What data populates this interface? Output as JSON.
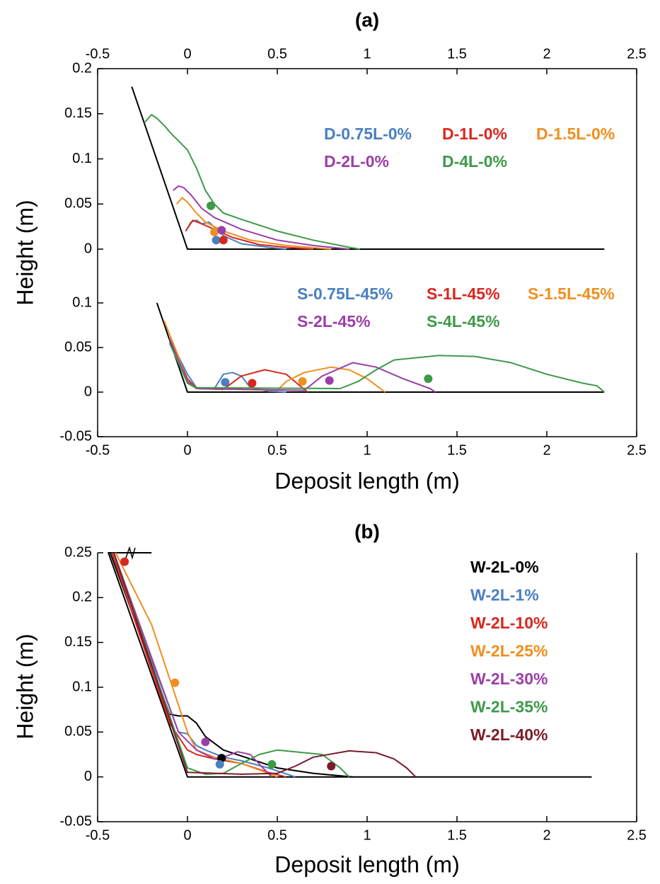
{
  "chart_data": [
    {
      "type": "line",
      "title": "(a)",
      "y_label": "Height (m)",
      "x_axis_side": "top",
      "xlim": [
        -0.5,
        2.5
      ],
      "xticks": [
        -0.5,
        0,
        0.5,
        1,
        1.5,
        2,
        2.5
      ],
      "ylim": [
        0,
        0.2
      ],
      "yticks": [
        0,
        0.05,
        0.1,
        0.15,
        0.2
      ],
      "ground": {
        "color": "#000000",
        "x": [
          -0.31,
          0,
          2.32
        ],
        "values": [
          0.18,
          0,
          0
        ]
      },
      "series": [
        {
          "name": "D-0.75L-0%",
          "color": "#4a7fc1",
          "x": [
            -0.01,
            0.02,
            0.05,
            0.08,
            0.12,
            0.2,
            0.3,
            0.45,
            0.55
          ],
          "values": [
            0.02,
            0.03,
            0.032,
            0.028,
            0.03,
            0.015,
            0.006,
            0.002,
            0
          ],
          "marker_x": 0.16,
          "marker_y": 0.01
        },
        {
          "name": "D-1L-0%",
          "color": "#d9271d",
          "x": [
            -0.01,
            0.03,
            0.08,
            0.15,
            0.25,
            0.4,
            0.55,
            0.7
          ],
          "values": [
            0.02,
            0.032,
            0.028,
            0.022,
            0.013,
            0.005,
            0.002,
            0
          ],
          "marker_x": 0.2,
          "marker_y": 0.01
        },
        {
          "name": "D-1.5L-0%",
          "color": "#ef8f1f",
          "x": [
            -0.06,
            -0.03,
            0,
            0.05,
            0.1,
            0.2,
            0.35,
            0.55,
            0.8
          ],
          "values": [
            0.05,
            0.057,
            0.052,
            0.04,
            0.03,
            0.02,
            0.01,
            0.004,
            0
          ],
          "marker_x": 0.15,
          "marker_y": 0.019
        },
        {
          "name": "D-2L-0%",
          "color": "#9b3fa8",
          "x": [
            -0.08,
            -0.05,
            -0.02,
            0.02,
            0.08,
            0.15,
            0.3,
            0.5,
            0.7,
            0.9
          ],
          "values": [
            0.065,
            0.07,
            0.068,
            0.06,
            0.045,
            0.035,
            0.022,
            0.01,
            0.004,
            0
          ],
          "marker_x": 0.19,
          "marker_y": 0.021
        },
        {
          "name": "D-4L-0%",
          "color": "#3e9a48",
          "x": [
            -0.24,
            -0.2,
            -0.17,
            -0.12,
            -0.1,
            0,
            0.05,
            0.1,
            0.15,
            0.2,
            0.3,
            0.5,
            0.7,
            0.9,
            0.96
          ],
          "values": [
            0.14,
            0.149,
            0.145,
            0.135,
            0.13,
            0.11,
            0.09,
            0.065,
            0.05,
            0.04,
            0.033,
            0.02,
            0.01,
            0.002,
            0
          ],
          "marker_x": 0.13,
          "marker_y": 0.048
        }
      ]
    },
    {
      "type": "line",
      "x_label": "Deposit length (m)",
      "x_axis_side": "bottom",
      "xlim": [
        -0.5,
        2.5
      ],
      "xticks": [
        -0.5,
        0,
        0.5,
        1,
        1.5,
        2,
        2.5
      ],
      "ylim": [
        -0.05,
        0.1
      ],
      "yticks": [
        -0.05,
        0,
        0.05,
        0.1
      ],
      "ground": {
        "color": "#000000",
        "x": [
          -0.17,
          0,
          2.32
        ],
        "values": [
          0.1,
          0,
          0
        ]
      },
      "series": [
        {
          "name": "S-0.75L-45%",
          "color": "#4a7fc1",
          "x": [
            -0.1,
            -0.05,
            0,
            0.05,
            0.15,
            0.2,
            0.25,
            0.3,
            0.35,
            0.45,
            0.55
          ],
          "values": [
            0.06,
            0.04,
            0.02,
            0.005,
            0.004,
            0.02,
            0.022,
            0.018,
            0.005,
            0.001,
            0
          ],
          "marker_x": 0.21,
          "marker_y": 0.011
        },
        {
          "name": "S-1L-45%",
          "color": "#d9271d",
          "x": [
            -0.1,
            0,
            0.05,
            0.2,
            0.3,
            0.43,
            0.55,
            0.62,
            0.67
          ],
          "values": [
            0.06,
            0.015,
            0.004,
            0.003,
            0.018,
            0.025,
            0.02,
            0.008,
            0
          ],
          "marker_x": 0.36,
          "marker_y": 0.01
        },
        {
          "name": "S-1.5L-45%",
          "color": "#ef8f1f",
          "x": [
            -0.13,
            -0.05,
            0,
            0.05,
            0.5,
            0.55,
            0.65,
            0.8,
            0.9,
            1.0,
            1.1
          ],
          "values": [
            0.08,
            0.04,
            0.01,
            0.004,
            0.002,
            0.012,
            0.022,
            0.028,
            0.025,
            0.015,
            0
          ],
          "marker_x": 0.64,
          "marker_y": 0.012
        },
        {
          "name": "S-2L-45%",
          "color": "#9b3fa8",
          "x": [
            -0.1,
            0,
            0.05,
            0.65,
            0.75,
            0.92,
            1.05,
            1.2,
            1.35,
            1.38
          ],
          "values": [
            0.06,
            0.012,
            0.004,
            0.002,
            0.018,
            0.033,
            0.028,
            0.015,
            0.004,
            0
          ],
          "marker_x": 0.79,
          "marker_y": 0.013
        },
        {
          "name": "S-4L-45%",
          "color": "#3e9a48",
          "x": [
            -0.1,
            0,
            0.05,
            0.85,
            0.95,
            1.05,
            1.15,
            1.4,
            1.6,
            1.8,
            2.0,
            2.2,
            2.28,
            2.32
          ],
          "values": [
            0.055,
            0.01,
            0.005,
            0.004,
            0.012,
            0.025,
            0.036,
            0.041,
            0.04,
            0.033,
            0.02,
            0.01,
            0.007,
            0
          ],
          "marker_x": 1.34,
          "marker_y": 0.015
        }
      ]
    },
    {
      "type": "line",
      "title": "(b)",
      "y_label": "Height (m)",
      "x_label": "Deposit length (m)",
      "x_axis_side": "bottom",
      "xlim": [
        -0.5,
        2.5
      ],
      "xticks": [
        -0.5,
        0,
        0.5,
        1,
        1.5,
        2,
        2.5
      ],
      "ylim": [
        -0.05,
        0.25
      ],
      "yticks": [
        -0.05,
        0,
        0.05,
        0.1,
        0.15,
        0.2,
        0.25
      ],
      "ground": {
        "color": "#000000",
        "x": [
          -0.2,
          -0.44,
          0,
          2.25
        ],
        "values": [
          0.25,
          0.25,
          0,
          0
        ]
      },
      "series": [
        {
          "name": "W-2L-0%",
          "color": "#000000",
          "x": [
            -0.43,
            -0.1,
            -0.05,
            0,
            0.05,
            0.1,
            0.2,
            0.35,
            0.5,
            0.7,
            0.92
          ],
          "values": [
            0.25,
            0.07,
            0.068,
            0.068,
            0.06,
            0.045,
            0.03,
            0.02,
            0.01,
            0.004,
            0
          ],
          "marker_x": 0.19,
          "marker_y": 0.021
        },
        {
          "name": "W-2L-1%",
          "color": "#4a7fc1",
          "x": [
            -0.42,
            -0.05,
            0,
            0.05,
            0.1,
            0.2,
            0.3,
            0.45,
            0.6
          ],
          "values": [
            0.25,
            0.05,
            0.048,
            0.035,
            0.03,
            0.022,
            0.018,
            0.01,
            0
          ],
          "marker_x": 0.18,
          "marker_y": 0.014
        },
        {
          "name": "W-2L-10%",
          "color": "#d9271d",
          "x": [
            -0.42,
            -0.1,
            0,
            0.05,
            0.15,
            0.3,
            0.45,
            0.55
          ],
          "values": [
            0.25,
            0.06,
            0.03,
            0.025,
            0.02,
            0.015,
            0.005,
            0
          ],
          "marker_x": -0.35,
          "marker_y": 0.24
        },
        {
          "name": "W-2L-25%",
          "color": "#ef8f1f",
          "x": [
            -0.4,
            -0.2,
            -0.1,
            0,
            0.05,
            0.15,
            0.3,
            0.45,
            0.5
          ],
          "values": [
            0.25,
            0.17,
            0.11,
            0.05,
            0.03,
            0.022,
            0.015,
            0.004,
            0
          ],
          "marker_x": -0.07,
          "marker_y": 0.105
        },
        {
          "name": "W-2L-30%",
          "color": "#9b3fa8",
          "x": [
            -0.41,
            -0.05,
            0.05,
            0.15,
            0.2,
            0.28,
            0.35,
            0.42,
            0.47
          ],
          "values": [
            0.25,
            0.05,
            0.03,
            0.02,
            0.022,
            0.028,
            0.025,
            0.01,
            0
          ],
          "marker_x": 0.1,
          "marker_y": 0.039
        },
        {
          "name": "W-2L-35%",
          "color": "#3e9a48",
          "x": [
            -0.41,
            0,
            0.1,
            0.2,
            0.3,
            0.4,
            0.5,
            0.6,
            0.75,
            0.85,
            0.9
          ],
          "values": [
            0.25,
            0.01,
            0.003,
            0.004,
            0.015,
            0.025,
            0.03,
            0.028,
            0.025,
            0.01,
            0
          ],
          "marker_x": 0.47,
          "marker_y": 0.014
        },
        {
          "name": "W-2L-40%",
          "color": "#7b1c2a",
          "x": [
            -0.41,
            0,
            0.3,
            0.5,
            0.6,
            0.7,
            0.9,
            1.05,
            1.15,
            1.22,
            1.27
          ],
          "values": [
            0.25,
            0.005,
            0.003,
            0.004,
            0.012,
            0.022,
            0.029,
            0.027,
            0.02,
            0.01,
            0
          ],
          "marker_x": 0.8,
          "marker_y": 0.012
        }
      ]
    }
  ]
}
